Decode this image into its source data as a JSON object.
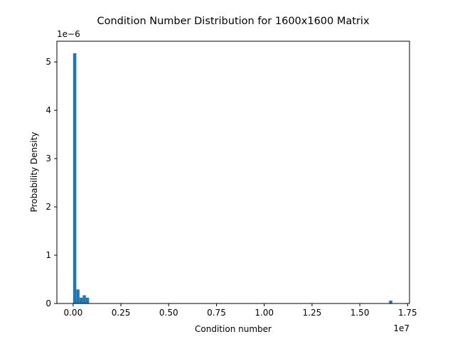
{
  "chart_data": {
    "type": "bar",
    "title": "Condition Number Distribution for 1600x1600 Matrix",
    "xlabel": "Condition number",
    "ylabel": "Probability Density",
    "x_scale_label": "1e7",
    "y_scale_label": "1e−6",
    "xlim": [
      -0.085,
      1.76
    ],
    "ylim": [
      0,
      5.43
    ],
    "x_ticks": [
      0,
      0.25,
      0.5,
      0.75,
      1.0,
      1.25,
      1.5,
      1.75
    ],
    "x_tick_labels": [
      "0.00",
      "0.25",
      "0.50",
      "0.75",
      "1.00",
      "1.25",
      "1.50",
      "1.75"
    ],
    "y_ticks": [
      0,
      1,
      2,
      3,
      4,
      5
    ],
    "y_tick_labels": [
      "0",
      "1",
      "2",
      "3",
      "4",
      "5"
    ],
    "bin_width": 0.0167,
    "bins": [
      {
        "x_start": 0.0,
        "value": 5.18
      },
      {
        "x_start": 0.0167,
        "value": 0.29
      },
      {
        "x_start": 0.0334,
        "value": 0.12
      },
      {
        "x_start": 0.0501,
        "value": 0.17
      },
      {
        "x_start": 0.0668,
        "value": 0.12
      },
      {
        "x_start": 1.6533,
        "value": 0.06
      }
    ],
    "bar_color": "#1f77b4",
    "grid": false
  }
}
